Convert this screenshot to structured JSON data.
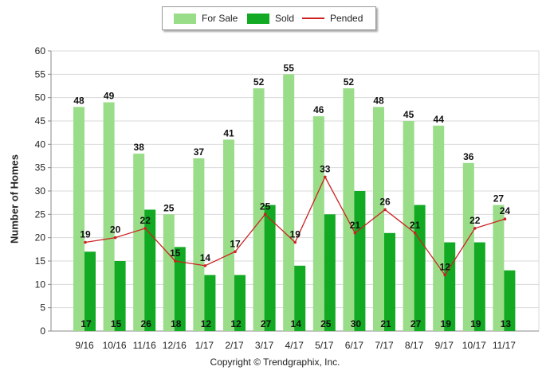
{
  "chart_data": {
    "type": "bar",
    "categories": [
      "9/16",
      "10/16",
      "11/16",
      "12/16",
      "1/17",
      "2/17",
      "3/17",
      "4/17",
      "5/17",
      "6/17",
      "7/17",
      "8/17",
      "9/17",
      "10/17",
      "11/17"
    ],
    "series": [
      {
        "name": "For Sale",
        "kind": "bar",
        "color": "#99dd88",
        "values": [
          48,
          49,
          38,
          25,
          37,
          41,
          52,
          55,
          46,
          52,
          48,
          45,
          44,
          36,
          27
        ]
      },
      {
        "name": "Sold",
        "kind": "bar",
        "color": "#11aa22",
        "values": [
          17,
          15,
          26,
          18,
          12,
          12,
          27,
          14,
          25,
          30,
          21,
          27,
          19,
          19,
          13
        ]
      },
      {
        "name": "Pended",
        "kind": "line",
        "color": "#cc2222",
        "values": [
          19,
          20,
          22,
          15,
          14,
          17,
          25,
          19,
          33,
          21,
          26,
          21,
          12,
          22,
          24
        ]
      }
    ],
    "ylabel": "Number of Homes",
    "xlabel": "",
    "ylim": [
      0,
      60
    ],
    "yticks": [
      0,
      5,
      10,
      15,
      20,
      25,
      30,
      35,
      40,
      45,
      50,
      55,
      60
    ],
    "grid": true,
    "legend_placement": "top-center"
  },
  "legend": {
    "for_sale": "For Sale",
    "sold": "Sold",
    "pended": "Pended"
  },
  "copyright": "Copyright © Trendgraphix, Inc."
}
